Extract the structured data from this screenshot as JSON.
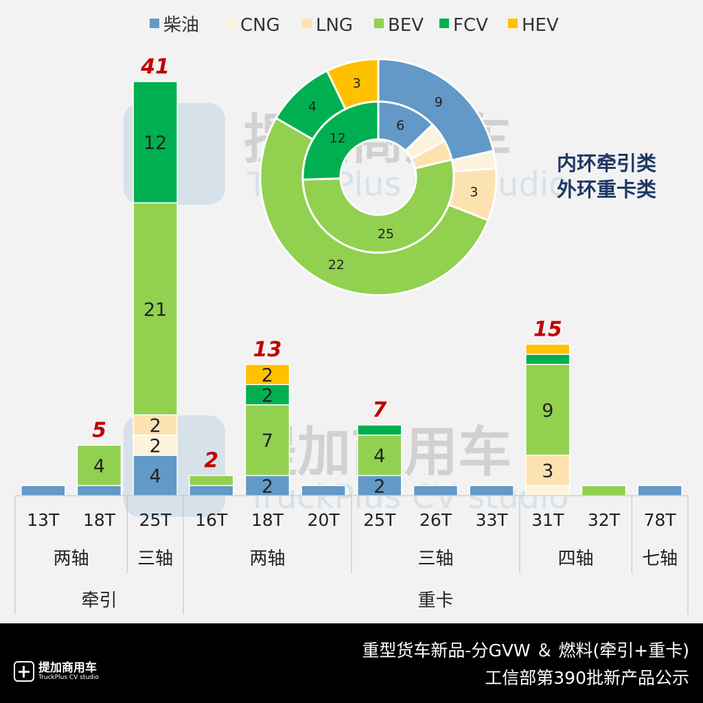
{
  "chart_data": {
    "type": "bar",
    "stacked": true,
    "title": "",
    "ylim": [
      0,
      45
    ],
    "grid": false,
    "legend_position": "top",
    "series_colors": {
      "柴油": "#6399c6",
      "CNG": "#fdf3dc",
      "LNG": "#fde2b1",
      "BEV": "#92d050",
      "FCV": "#00b050",
      "HEV": "#ffc000"
    },
    "categories": [
      "13T",
      "18T",
      "25T",
      "16T",
      "18T",
      "20T",
      "25T",
      "26T",
      "33T",
      "31T",
      "32T",
      "78T"
    ],
    "axle_groups": [
      {
        "label": "两轴",
        "span": 2
      },
      {
        "label": "三轴",
        "span": 1
      },
      {
        "label": "两轴",
        "span": 3
      },
      {
        "label": "三轴",
        "span": 3
      },
      {
        "label": "四轴",
        "span": 2
      },
      {
        "label": "七轴",
        "span": 1
      }
    ],
    "type_groups": [
      {
        "label": "牵引",
        "span": 3
      },
      {
        "label": "重卡",
        "span": 9
      }
    ],
    "series": [
      {
        "name": "柴油",
        "values": [
          1,
          1,
          4,
          1,
          2,
          1,
          2,
          1,
          1,
          0,
          0,
          1
        ]
      },
      {
        "name": "CNG",
        "values": [
          0,
          0,
          2,
          0,
          0,
          0,
          0,
          0,
          0,
          1,
          0,
          0
        ]
      },
      {
        "name": "LNG",
        "values": [
          0,
          0,
          2,
          0,
          0,
          0,
          0,
          0,
          0,
          3,
          0,
          0
        ]
      },
      {
        "name": "BEV",
        "values": [
          0,
          4,
          21,
          1,
          7,
          0,
          4,
          0,
          0,
          9,
          1,
          0
        ]
      },
      {
        "name": "FCV",
        "values": [
          0,
          0,
          12,
          0,
          2,
          0,
          1,
          0,
          0,
          1,
          0,
          0
        ]
      },
      {
        "name": "HEV",
        "values": [
          0,
          0,
          0,
          0,
          2,
          0,
          0,
          0,
          0,
          1,
          0,
          0
        ]
      }
    ],
    "totals": [
      "",
      "5",
      "41",
      "2",
      "13",
      "",
      "7",
      "",
      "",
      "15",
      "",
      ""
    ],
    "total_label_color": "#c00000",
    "donut": {
      "type": "pie",
      "labels": [
        "柴油",
        "CNG",
        "LNG",
        "BEV",
        "FCV",
        "HEV"
      ],
      "inner_ring_name": "牵引",
      "inner_values": [
        6,
        2,
        2,
        25,
        12,
        0
      ],
      "outer_ring_name": "重卡",
      "outer_values": [
        9,
        1,
        3,
        22,
        4,
        3
      ],
      "annotation_lines": [
        "内环牵引类",
        "外环重卡类"
      ],
      "annotation_color": "#1f3864"
    }
  },
  "footer": {
    "title": "重型货车新品-分GVW ＆ 燃料(牵引+重卡)",
    "subtitle": "工信部第390批新产品公示",
    "logo_name": "提加商用车",
    "logo_sub": "TruckPlus CV studio"
  },
  "watermark": {
    "name": "提加商用车",
    "sub": "TruckPlus CV studio"
  }
}
